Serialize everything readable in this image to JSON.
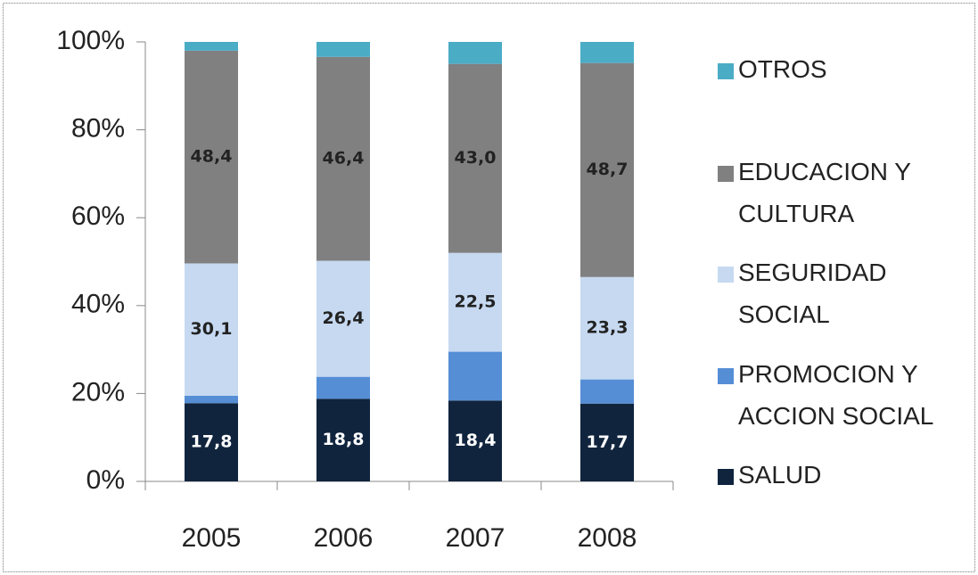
{
  "chart_data": {
    "type": "stacked_bar",
    "categories": [
      "2005",
      "2006",
      "2007",
      "2008"
    ],
    "series": [
      {
        "name": "SALUD",
        "color": "#10243e",
        "values": [
          17.8,
          18.8,
          18.4,
          17.7
        ],
        "value_labels": [
          "17,8",
          "18,8",
          "18,4",
          "17,7"
        ]
      },
      {
        "name": "PROMOCION Y ACCION SOCIAL",
        "color": "#558ed5",
        "values": [
          1.7,
          5.0,
          11.1,
          5.5
        ]
      },
      {
        "name": "SEGURIDAD SOCIAL",
        "color": "#c6d9f1",
        "values": [
          30.1,
          26.4,
          22.5,
          23.3
        ],
        "value_labels": [
          "30,1",
          "26,4",
          "22,5",
          "23,3"
        ]
      },
      {
        "name": "EDUCACION Y CULTURA",
        "color": "#808080",
        "values": [
          48.4,
          46.4,
          43.0,
          48.7
        ],
        "value_labels": [
          "48,4",
          "46,4",
          "43,0",
          "48,7"
        ]
      },
      {
        "name": "OTROS",
        "color": "#4bacc6",
        "values": [
          2.0,
          3.4,
          5.0,
          4.8
        ]
      }
    ],
    "ylim": [
      0,
      100
    ],
    "yticks": [
      {
        "value": 0,
        "label": "0%"
      },
      {
        "value": 20,
        "label": "20%"
      },
      {
        "value": 40,
        "label": "40%"
      },
      {
        "value": 60,
        "label": "60%"
      },
      {
        "value": 80,
        "label": "80%"
      },
      {
        "value": 100,
        "label": "100%"
      }
    ],
    "legend": "right"
  }
}
